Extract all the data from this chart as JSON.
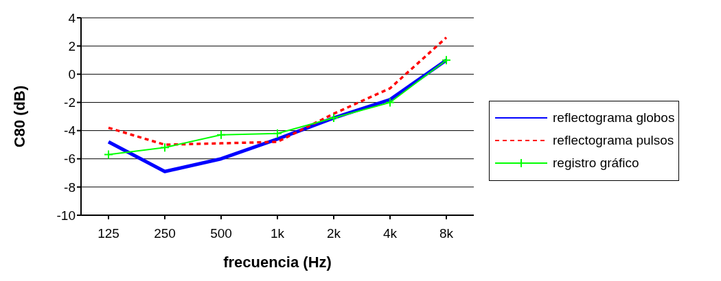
{
  "chart_data": {
    "type": "line",
    "xlabel": "frecuencia (Hz)",
    "ylabel": "C80 (dB)",
    "categories": [
      "125",
      "250",
      "500",
      "1k",
      "2k",
      "4k",
      "8k"
    ],
    "series": [
      {
        "name": "reflectograma globos",
        "color": "#0000ff",
        "values": [
          -4.8,
          -6.9,
          -6.0,
          -4.6,
          -3.1,
          -1.8,
          1.0
        ],
        "line_style": "solid",
        "marker": "none"
      },
      {
        "name": "reflectograma pulsos",
        "color": "#ff0000",
        "values": [
          -3.8,
          -5.0,
          -4.9,
          -4.8,
          -2.8,
          -1.0,
          2.6
        ],
        "line_style": "dashed",
        "marker": "none"
      },
      {
        "name": "registro gráfico",
        "color": "#00ff00",
        "values": [
          -5.7,
          -5.2,
          -4.3,
          -4.2,
          -3.1,
          -2.0,
          1.0
        ],
        "line_style": "solid",
        "marker": "cross"
      }
    ],
    "ylim": [
      -10,
      4
    ],
    "yticks": [
      -10,
      -8,
      -6,
      -4,
      -2,
      0,
      2,
      4
    ],
    "grid": "y",
    "legend": "right"
  }
}
